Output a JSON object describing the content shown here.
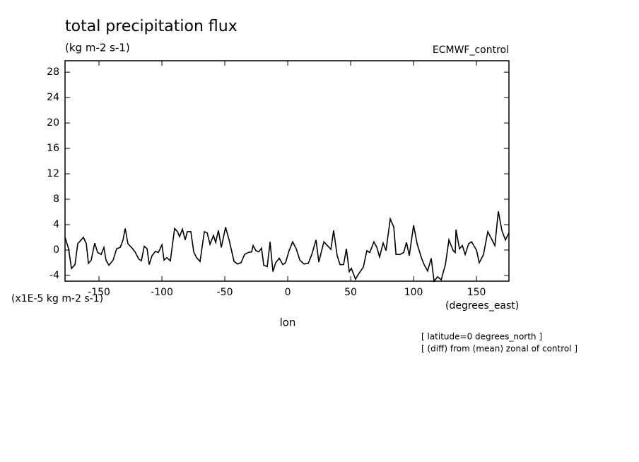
{
  "chart_data": {
    "type": "line",
    "title": "total precipitation flux",
    "subtitle": "(kg m-2 s-1)",
    "dataset": "ECMWF_control",
    "y_units": "(x1E-5 kg m-2 s-1)",
    "x_units": "(degrees_east)",
    "xlabel": "lon",
    "notes": [
      "[ latitude=0 degrees_north ]",
      "[ (diff) from (mean) zonal of control ]"
    ],
    "xlim": [
      -177,
      175.8
    ],
    "ylim": [
      -4.9,
      29.8
    ],
    "xticks": [
      -150,
      -100,
      -50,
      0,
      50,
      100,
      150
    ],
    "yticks": [
      -4,
      0,
      4,
      8,
      12,
      16,
      20,
      24,
      28
    ],
    "x": [
      -177,
      -174.2,
      -171.9,
      -169.1,
      -166.9,
      -162.4,
      -160.1,
      -158.4,
      -156.2,
      -153.4,
      -151.1,
      -148.3,
      -146.1,
      -144.4,
      -142.1,
      -138.8,
      -136,
      -133.1,
      -130.9,
      -129.2,
      -127,
      -124.2,
      -121.3,
      -118.5,
      -116.3,
      -114,
      -111.8,
      -110.1,
      -107.9,
      -105.1,
      -102.8,
      -100,
      -98.3,
      -96.1,
      -93.3,
      -89.9,
      -87.6,
      -86,
      -83.7,
      -81.5,
      -79.8,
      -77,
      -74.7,
      -72.5,
      -69.7,
      -66.3,
      -64,
      -61.8,
      -59,
      -57.3,
      -55.1,
      -52.8,
      -49.4,
      -46.6,
      -42.7,
      -39.9,
      -37.1,
      -34.3,
      -31.5,
      -28.7,
      -27.5,
      -25.3,
      -23,
      -20.8,
      -19.1,
      -16.3,
      -14,
      -11.8,
      -9.6,
      -6.7,
      -3.9,
      -1.7,
      1.1,
      3.9,
      6.7,
      9.6,
      12.9,
      16.3,
      19.1,
      22.5,
      24.7,
      28.7,
      31.5,
      34.3,
      36.5,
      39.3,
      41.6,
      44.4,
      46.6,
      48.9,
      50.6,
      53.9,
      56.2,
      60.1,
      62.9,
      65.2,
      68.5,
      70.8,
      73,
      75.8,
      78.1,
      81.5,
      84.3,
      86,
      89.3,
      92.1,
      94.4,
      96.6,
      100,
      102.8,
      106.2,
      108.4,
      111.2,
      114,
      116.3,
      119.1,
      121.9,
      125.3,
      128.1,
      131.5,
      133.1,
      133.7,
      136.5,
      138.8,
      141,
      143.8,
      146.1,
      150,
      152.2,
      155.6,
      159,
      162.4,
      164.6,
      167.4,
      170.2,
      173,
      175.8
    ],
    "series": [
      {
        "color": "#000000",
        "values": [
          2,
          0.2,
          -2.9,
          -2.3,
          1,
          2,
          1,
          -2.1,
          -1.6,
          1.1,
          -0.4,
          -0.7,
          0.4,
          -1.6,
          -2.4,
          -1.6,
          0.2,
          0.4,
          1.6,
          3.4,
          1,
          0.4,
          -0.3,
          -1.4,
          -1.7,
          0.6,
          0.2,
          -2.3,
          -0.9,
          -0.2,
          -0.4,
          0.8,
          -1.6,
          -1.2,
          -1.7,
          3.4,
          2.9,
          2.1,
          3.3,
          1.6,
          2.9,
          2.9,
          -0.3,
          -1.2,
          -1.8,
          2.9,
          2.7,
          0.9,
          2.3,
          1.2,
          3.1,
          0.4,
          3.6,
          1.6,
          -1.8,
          -2.2,
          -2,
          -0.7,
          -0.4,
          -0.3,
          0.7,
          -0.1,
          -0.3,
          0.3,
          -2.4,
          -2.6,
          1.3,
          -3.4,
          -2,
          -1.3,
          -2.3,
          -2,
          -0.1,
          1.3,
          0.2,
          -1.6,
          -2.2,
          -2.1,
          -0.7,
          1.6,
          -1.9,
          1.3,
          0.7,
          0.1,
          3.1,
          -0.9,
          -2.3,
          -2.3,
          0.2,
          -3.4,
          -2.9,
          -4.6,
          -3.8,
          -2.7,
          -0.1,
          -0.4,
          1.3,
          0.4,
          -1.1,
          1.1,
          -0.1,
          4.9,
          3.6,
          -0.7,
          -0.7,
          -0.4,
          1.2,
          -0.9,
          3.9,
          1,
          -1.2,
          -2.3,
          -3.3,
          -1.3,
          -4.9,
          -4.2,
          -4.7,
          -2.3,
          1.6,
          -0.1,
          -0.4,
          3.2,
          0.2,
          0.7,
          -0.7,
          1,
          1.3,
          0,
          -2,
          -0.7,
          2.9,
          1.6,
          0.7,
          6.1,
          3.1,
          1.6,
          2.7
        ]
      }
    ]
  }
}
